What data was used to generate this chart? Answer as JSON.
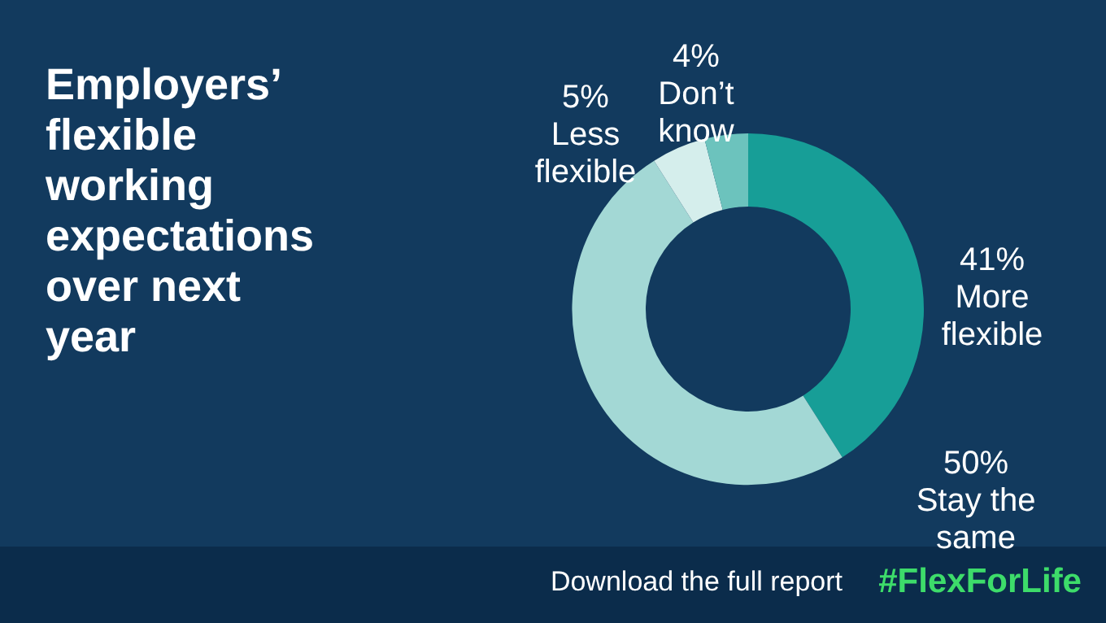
{
  "chart_data": {
    "type": "donut",
    "title": "Employers’ flexible working expectations over next year",
    "categories": [
      "More flexible",
      "Stay the same",
      "Less flexible",
      "Don’t know"
    ],
    "values": [
      41,
      50,
      5,
      4
    ],
    "colors": [
      "#179e97",
      "#a3d8d5",
      "#d5eeec",
      "#6cc3bd"
    ],
    "value_labels": [
      "41%",
      "50%",
      "5%",
      "4%"
    ],
    "annotations": [
      "Download the full report",
      "#FlexForLife"
    ]
  }
}
